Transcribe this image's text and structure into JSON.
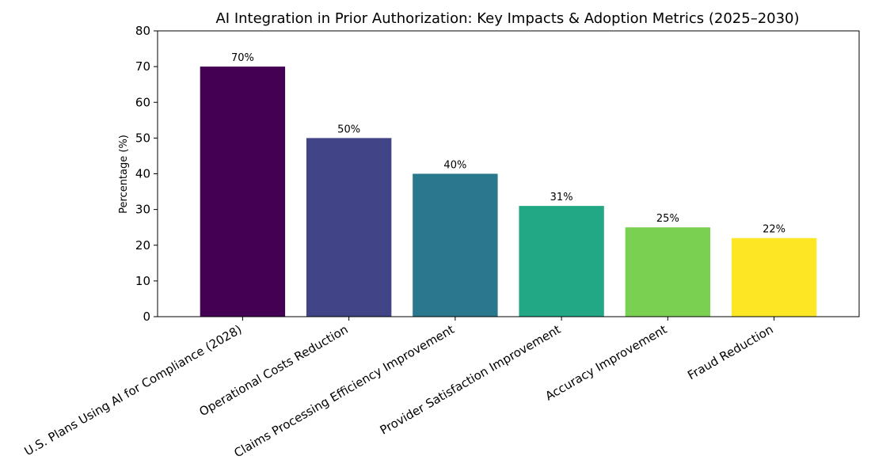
{
  "chart_data": {
    "type": "bar",
    "title": "AI Integration in Prior Authorization: Key Impacts & Adoption Metrics (2025–2030)",
    "xlabel": "",
    "ylabel": "Percentage (%)",
    "ylim": [
      0,
      80
    ],
    "yticks": [
      0,
      10,
      20,
      30,
      40,
      50,
      60,
      70,
      80
    ],
    "categories": [
      "U.S. Plans Using AI for Compliance (2028)",
      "Operational Costs Reduction",
      "Claims Processing Efficiency Improvement",
      "Provider Satisfaction Improvement",
      "Accuracy Improvement",
      "Fraud Reduction"
    ],
    "values": [
      70,
      50,
      40,
      31,
      25,
      22
    ],
    "data_labels": [
      "70%",
      "50%",
      "40%",
      "31%",
      "25%",
      "22%"
    ],
    "colors": [
      "#440154",
      "#414487",
      "#2a788e",
      "#22a884",
      "#7ad151",
      "#fde725"
    ],
    "grid": false,
    "legend": "none"
  }
}
